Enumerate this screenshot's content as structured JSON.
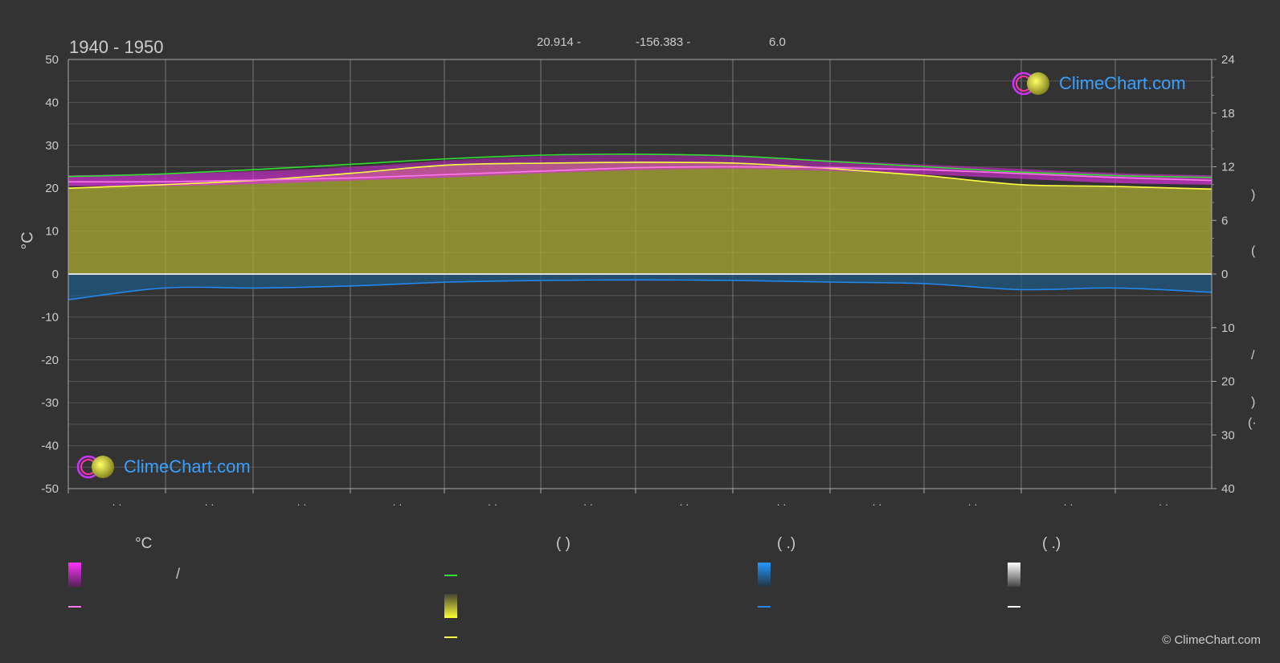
{
  "header": {
    "period": "1940 - 1950",
    "latitude": "20.914 -",
    "longitude": "-156.383 -",
    "elevation": "6.0"
  },
  "logo": {
    "text": "ClimeChart.com"
  },
  "copyright": "© ClimeChart.com",
  "left_axis_unit": "°C",
  "right_axis_glyphs": [
    ")",
    "(",
    "/",
    ")",
    "(·"
  ],
  "legend_headers": [
    "°C",
    "(            )",
    "(    .)",
    "(    .)"
  ],
  "legend_misc": {
    "slash": "/"
  },
  "colors": {
    "background": "#333333",
    "temp_band": "#cc22cc",
    "temp_mean": "#ff77ee",
    "daylight": "#33dd33",
    "sunshine_band": "#aaaa33",
    "sunshine_mean": "#ffff44",
    "rain_band": "#1e5a88",
    "rain_mean": "#2288ee",
    "snow": "#ffffff",
    "grid": "#555555",
    "month_grid": "#777777",
    "zero_line": "#dddddd",
    "logo_text": "#3aa0ff"
  },
  "chart_data": {
    "type": "line",
    "x_count": 12,
    "x_tick_labels": [
      "· ·",
      "· ·",
      "· ·",
      "· ·",
      "· ·",
      "· ·",
      "· ·",
      "· ·",
      "· ·",
      "· ·",
      "· ·",
      "· ·"
    ],
    "left_axis": {
      "unit": "°C",
      "ylim": [
        -50,
        50
      ],
      "ticks": [
        50,
        40,
        30,
        20,
        10,
        0,
        -10,
        -20,
        -30,
        -40,
        -50
      ]
    },
    "right_axis_upper": {
      "ylim": [
        0,
        24
      ],
      "ticks": [
        24,
        18,
        12,
        6,
        0
      ]
    },
    "right_axis_lower": {
      "ylim": [
        0,
        40
      ],
      "ticks": [
        0,
        10,
        20,
        30,
        40
      ]
    },
    "grid": true,
    "series": [
      {
        "key": "temp_max",
        "values": [
          23.0,
          23.4,
          24.0,
          25.0,
          26.5,
          27.5,
          28.0,
          27.5,
          26.5,
          25.5,
          24.5,
          23.5,
          23.0
        ]
      },
      {
        "key": "temp_min",
        "values": [
          20.5,
          20.5,
          21.0,
          21.8,
          22.5,
          23.5,
          24.2,
          24.5,
          24.0,
          23.2,
          22.2,
          21.2,
          20.8
        ]
      },
      {
        "key": "temp_mean",
        "values": [
          21.5,
          21.5,
          21.9,
          22.4,
          23.2,
          24.0,
          24.8,
          25.0,
          24.8,
          24.3,
          23.4,
          22.5,
          21.8
        ]
      },
      {
        "key": "daylight_hours",
        "values": [
          10.9,
          11.2,
          11.7,
          12.3,
          12.9,
          13.3,
          13.4,
          13.2,
          12.6,
          12.0,
          11.4,
          11.0,
          10.8
        ]
      },
      {
        "key": "sunshine_hours",
        "values": [
          9.6,
          10.0,
          10.5,
          11.3,
          12.2,
          12.4,
          12.5,
          12.4,
          11.8,
          11.0,
          10.0,
          9.8,
          9.5
        ]
      },
      {
        "key": "rain_daily_mean",
        "values": [
          4.8,
          2.6,
          2.6,
          2.2,
          1.5,
          1.2,
          1.1,
          1.2,
          1.5,
          1.8,
          2.9,
          2.6,
          3.4
        ]
      }
    ]
  }
}
